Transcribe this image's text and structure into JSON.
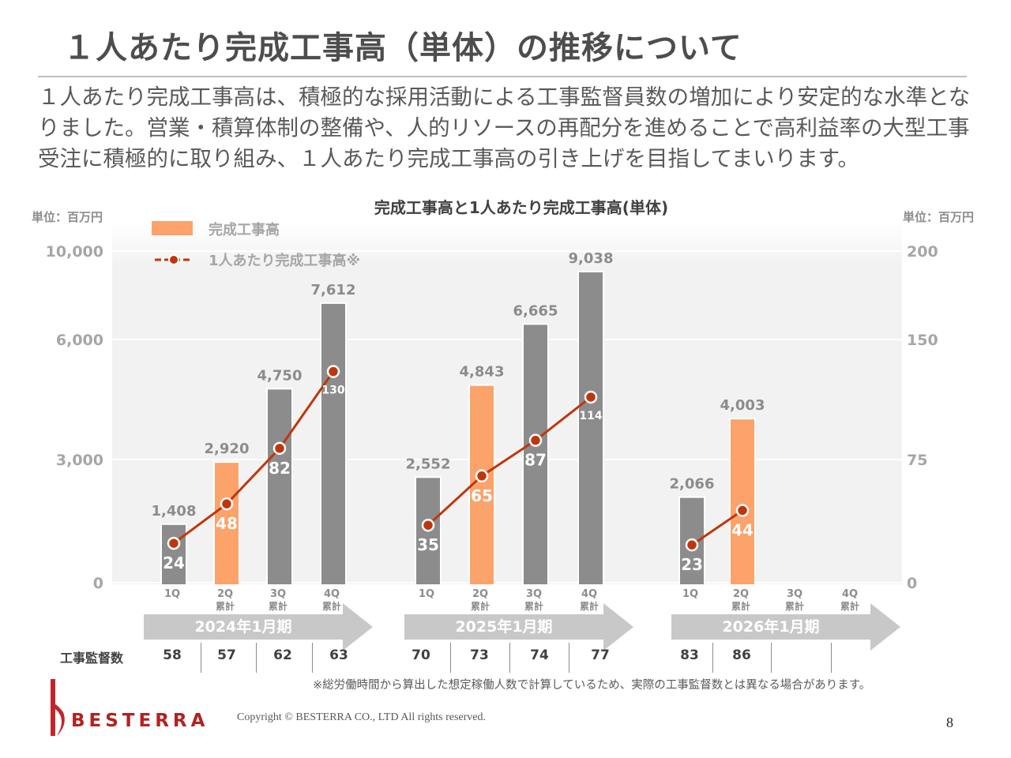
{
  "slide": {
    "title": "１人あたり完成工事高（単体）の推移について",
    "intro": "１人あたり完成工事高は、積極的な採用活動による工事監督員数の増加により安定的な水準となりました。営業・積算体制の整備や、人的リソースの再配分を進めることで高利益率の大型工事受注に積極的に取り組み、１人あたり完成工事高の引き上げを目指してまいります。",
    "unit_left": "単位：百万円",
    "unit_right": "単位：百万円",
    "footnote": "※総労働時間から算出した想定稼働人数で計算しているため、実際の工事監督数とは異なる場合があります。",
    "copyright": "Copyright © BESTERRA CO., LTD All rights reserved.",
    "logo_text": "BESTERRA",
    "page_number": "8"
  },
  "staff": {
    "label": "工事監督数",
    "values": [
      "58",
      "57",
      "62",
      "63",
      "70",
      "73",
      "74",
      "77",
      "83",
      "86",
      "",
      ""
    ]
  },
  "chart_data": {
    "type": "bar",
    "title": "完成工事高と1人あたり完成工事高(単体)",
    "legend": [
      "完成工事高",
      "1人あたり完成工事高※"
    ],
    "legend_position": "top-left",
    "grid": true,
    "y_left_ticks": [
      "10,000",
      "6,000",
      "3,000",
      "0"
    ],
    "y_right_ticks": [
      "200",
      "150",
      "75",
      "0"
    ],
    "groups": [
      {
        "label": "2024年1月期",
        "categories": [
          [
            "1Q",
            ""
          ],
          [
            "2Q",
            "累計"
          ],
          [
            "3Q",
            "累計"
          ],
          [
            "4Q",
            "累計"
          ]
        ]
      },
      {
        "label": "2025年1月期",
        "categories": [
          [
            "1Q",
            ""
          ],
          [
            "2Q",
            "累計"
          ],
          [
            "3Q",
            "累計"
          ],
          [
            "4Q",
            "累計"
          ]
        ]
      },
      {
        "label": "2026年1月期",
        "categories": [
          [
            "1Q",
            ""
          ],
          [
            "2Q",
            "累計"
          ],
          [
            "3Q",
            "累計"
          ],
          [
            "4Q",
            "累計"
          ]
        ]
      }
    ],
    "series": [
      {
        "name": "完成工事高",
        "type": "bar",
        "values": [
          1408,
          2920,
          4750,
          7612,
          2552,
          4843,
          6665,
          9038,
          2066,
          4003,
          null,
          null
        ],
        "labels": [
          "1,408",
          "2,920",
          "4,750",
          "7,612",
          "2,552",
          "4,843",
          "6,665",
          "9,038",
          "2,066",
          "4,003",
          "",
          ""
        ]
      },
      {
        "name": "1人あたり完成工事高※",
        "type": "line",
        "values": [
          24,
          48,
          82,
          130,
          35,
          65,
          87,
          114,
          23,
          44,
          null,
          null
        ]
      }
    ],
    "colors": {
      "bar_default": "#8c8c8c",
      "bar_highlight": "#fca26b",
      "line": "#c0360c",
      "plot_bg": "#f2f2f2",
      "arrow": "#c8c8c8"
    },
    "highlight_index": [
      1,
      5,
      9
    ]
  }
}
